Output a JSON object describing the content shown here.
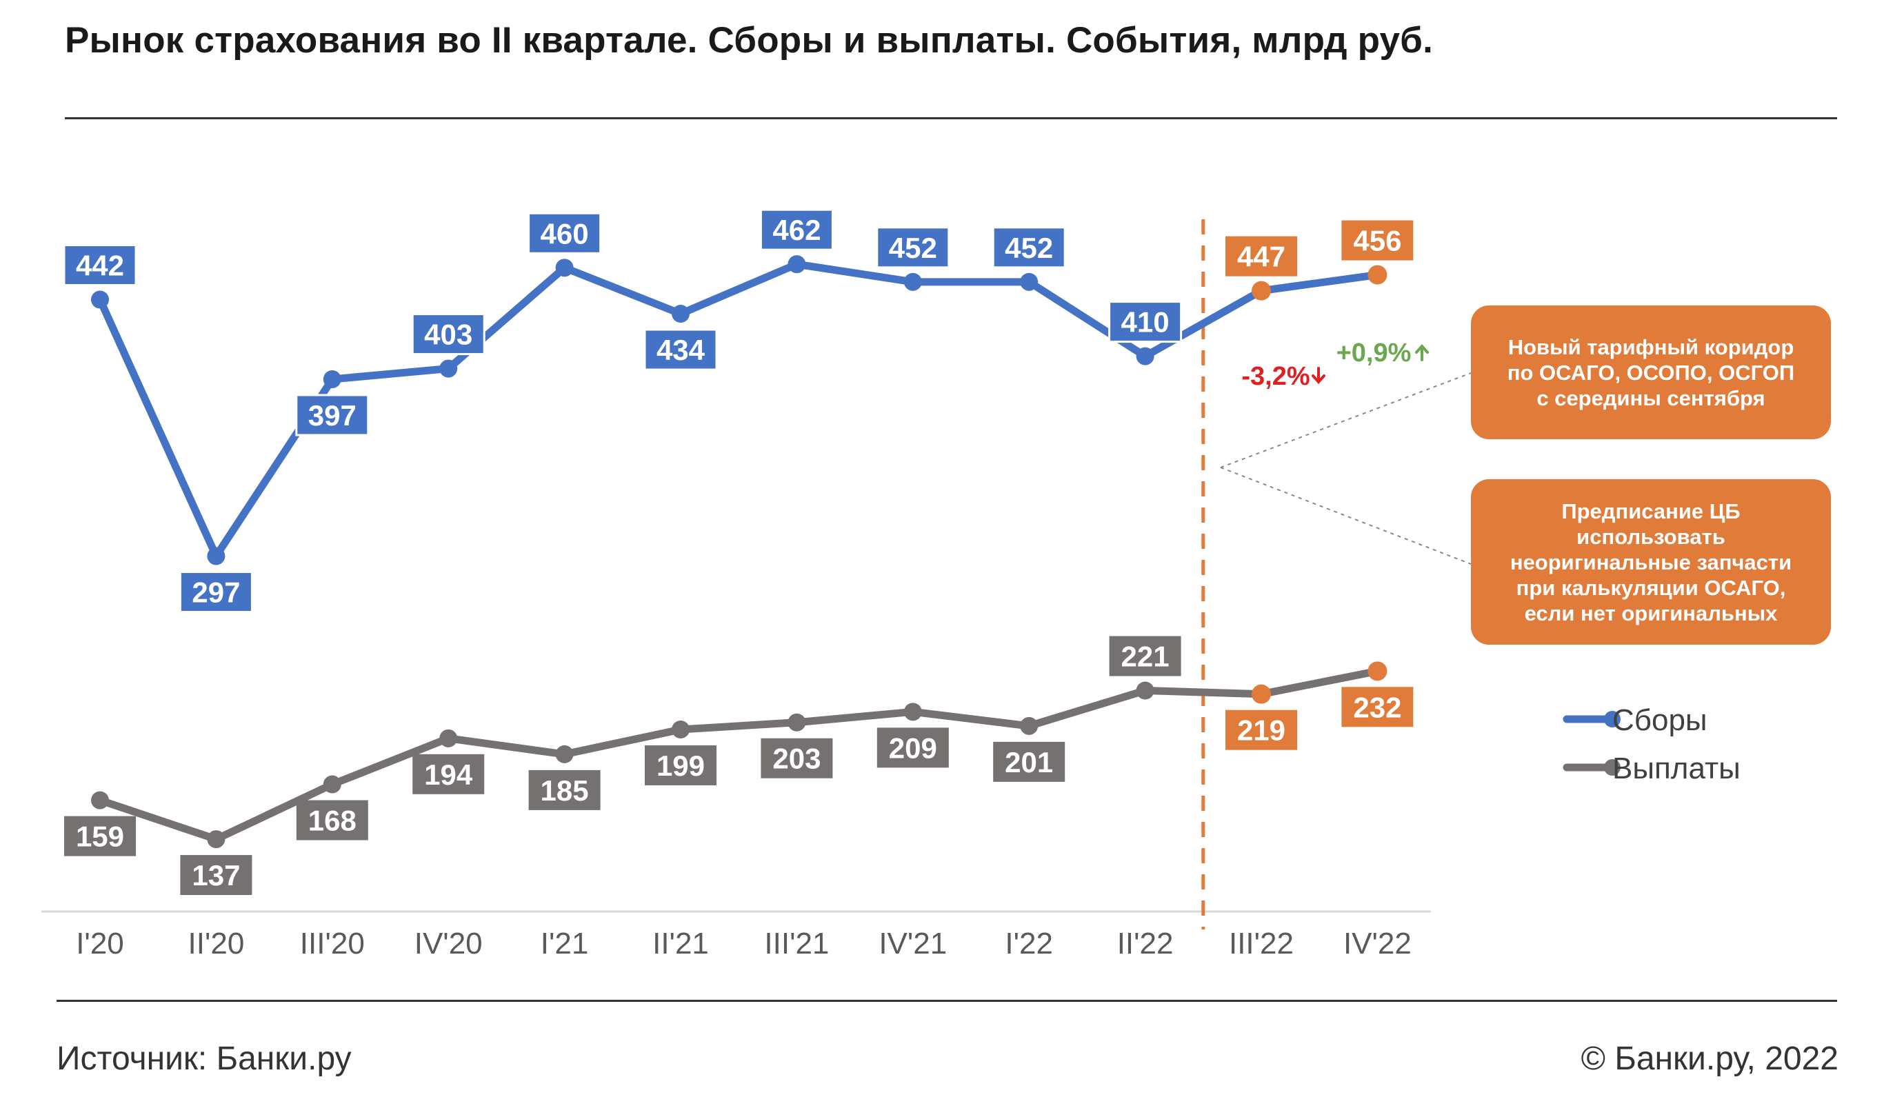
{
  "title": "Рынок страхования во II квартале. Сборы и выплаты. События,  млрд руб.",
  "footer": {
    "source": "Источник: Банки.ру",
    "copyright": "© Банки.ру, 2022"
  },
  "colors": {
    "collections": "#4472C4",
    "payouts": "#767171",
    "forecast": "#E07B39",
    "negative": "#E02020",
    "positive": "#6AA84F"
  },
  "chart_data": {
    "type": "line",
    "categories": [
      "I'20",
      "II'20",
      "III'20",
      "IV'20",
      "I'21",
      "II'21",
      "III'21",
      "IV'21",
      "I'22",
      "II'22",
      "III'22",
      "IV'22"
    ],
    "ylim": [
      100,
      480
    ],
    "grid": false,
    "legend_position": "right",
    "forecast_from_index": 10,
    "series": [
      {
        "name": "Сборы",
        "values": [
          442,
          297,
          397,
          403,
          460,
          434,
          462,
          452,
          452,
          410,
          447,
          456
        ]
      },
      {
        "name": "Выплаты",
        "values": [
          159,
          137,
          168,
          194,
          185,
          199,
          203,
          209,
          201,
          221,
          219,
          232
        ]
      }
    ],
    "annotations": {
      "change_negative": "-3,2%",
      "change_positive": "+0,9%",
      "events": [
        "Новый тарифный коридор по ОСАГО, ОСОПО, ОСГОП с середины сентября",
        "Предписание ЦБ использовать неоригинальные запчасти при калькуляции ОСАГО, если нет оригинальных"
      ]
    }
  }
}
